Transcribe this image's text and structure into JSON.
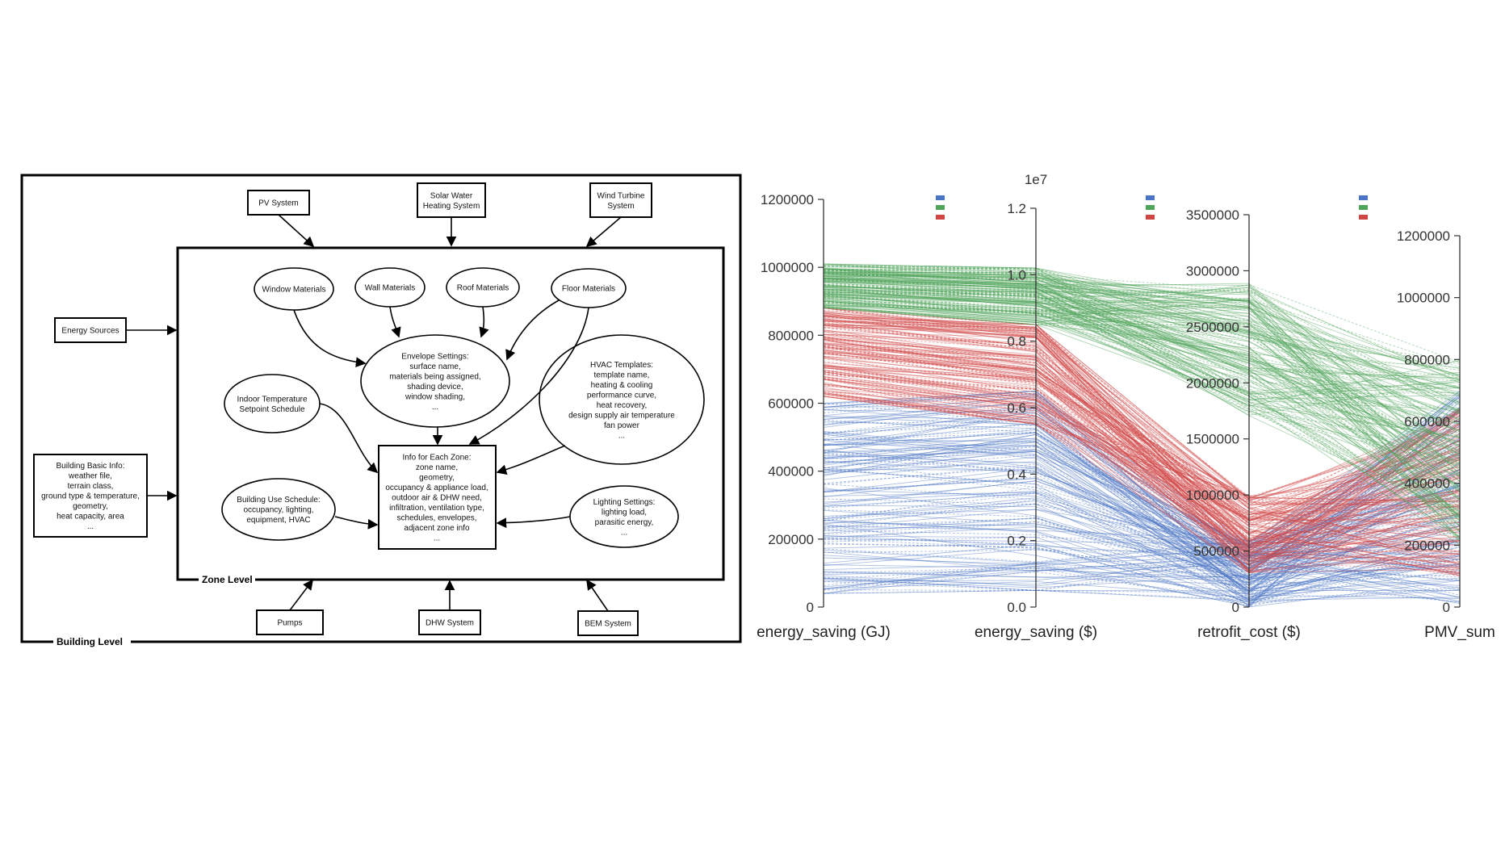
{
  "diagram": {
    "building_level_label": "Building Level",
    "zone_level_label": "Zone Level",
    "pv_system": [
      "PV System"
    ],
    "solar_water": [
      "Solar Water",
      "Heating System"
    ],
    "wind_turbine": [
      "Wind Turbine",
      "System"
    ],
    "energy_sources": [
      "Energy Sources"
    ],
    "building_basic_info": [
      "Building Basic Info:",
      "weather file,",
      "terrain class,",
      "ground type & temperature,",
      "geometry,",
      "heat capacity, area",
      "..."
    ],
    "pumps": [
      "Pumps"
    ],
    "dhw_system": [
      "DHW System"
    ],
    "bem_system": [
      "BEM System"
    ],
    "window_materials": [
      "Window Materials"
    ],
    "wall_materials": [
      "Wall Materials"
    ],
    "roof_materials": [
      "Roof Materials"
    ],
    "floor_materials": [
      "Floor Materials"
    ],
    "envelope_settings": [
      "Envelope Settings:",
      "surface name,",
      "materials being assigned,",
      "shading device,",
      "window shading,",
      "..."
    ],
    "hvac_templates": [
      "HVAC Templates:",
      "template name,",
      "heating & cooling",
      "performance curve,",
      "heat recovery,",
      "design supply air temperature",
      "fan power",
      "..."
    ],
    "indoor_temp": [
      "Indoor Temperature",
      "Setpoint Schedule"
    ],
    "info_zone": [
      "Info for Each Zone:",
      "zone name,",
      "geometry,",
      "occupancy & appliance load,",
      "outdoor air & DHW need,",
      "infiltration, ventilation type,",
      "schedules, envelopes,",
      "adjacent zone info",
      "..."
    ],
    "building_use": [
      "Building Use Schedule:",
      "occupancy, lighting,",
      "equipment, HVAC"
    ],
    "lighting_settings": [
      "Lighting Settings:",
      "lighting load,",
      "parasitic energy,",
      "..."
    ]
  },
  "chart_data": {
    "type": "parallel-coordinates",
    "axes": [
      {
        "name": "energy_saving (GJ)",
        "range": [
          0,
          1200000
        ],
        "ticks": [
          "0",
          "200000",
          "400000",
          "600000",
          "800000",
          "1000000",
          "1200000"
        ]
      },
      {
        "name": "energy_saving ($)",
        "range": [
          0,
          1.2
        ],
        "ticks": [
          "0.0",
          "0.2",
          "0.4",
          "0.6",
          "0.8",
          "1.0",
          "1.2"
        ],
        "unit_note": "1e7"
      },
      {
        "name": "retrofit_cost ($)",
        "range": [
          0,
          3500000
        ],
        "ticks": [
          "0",
          "500000",
          "1000000",
          "1500000",
          "2000000",
          "2500000",
          "3000000",
          "3500000"
        ]
      },
      {
        "name": "PMV_sum",
        "range": [
          0,
          1200000
        ],
        "ticks": [
          "0",
          "200000",
          "400000",
          "600000",
          "800000",
          "1000000",
          "1200000"
        ]
      }
    ],
    "series": [
      {
        "color": "#4a74c4",
        "range_energy_gj": [
          40000,
          600000
        ],
        "range_energy_usd": [
          0.05,
          0.65
        ],
        "range_cost": [
          0,
          600000
        ],
        "range_pmv": [
          0,
          700000
        ]
      },
      {
        "color": "#4fa35a",
        "range_energy_gj": [
          880000,
          1010000
        ],
        "range_energy_usd": [
          0.85,
          1.02
        ],
        "range_cost": [
          1700000,
          2900000
        ],
        "range_pmv": [
          200000,
          800000
        ]
      },
      {
        "color": "#d14545",
        "range_energy_gj": [
          620000,
          880000
        ],
        "range_energy_usd": [
          0.55,
          0.85
        ],
        "range_cost": [
          300000,
          1000000
        ],
        "range_pmv": [
          100000,
          650000
        ]
      }
    ]
  }
}
